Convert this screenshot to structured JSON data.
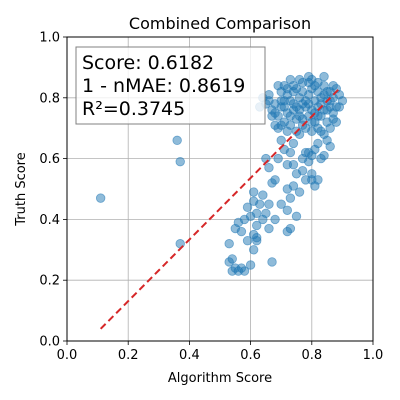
{
  "chart_data": {
    "type": "scatter",
    "title": "Combined Comparison",
    "xlabel": "Algorithm Score",
    "ylabel": "Truth Score",
    "xlim": [
      0.0,
      1.0
    ],
    "ylim": [
      0.0,
      1.0
    ],
    "xticks": [
      "0.0",
      "0.2",
      "0.4",
      "0.6",
      "0.8",
      "1.0"
    ],
    "yticks": [
      "0.0",
      "0.2",
      "0.4",
      "0.6",
      "0.8",
      "1.0"
    ],
    "grid": true,
    "stats_box": {
      "position": "top-left",
      "lines": [
        "Score: 0.6182",
        "1 - nMAE: 0.8619",
        "R²=0.3745"
      ]
    },
    "fit_line": {
      "x": [
        0.11,
        0.89
      ],
      "y": [
        0.04,
        0.83
      ],
      "color": "#d62728",
      "style": "dashed"
    },
    "point_color": "#1f77b4",
    "points": [
      [
        0.11,
        0.47
      ],
      [
        0.36,
        0.66
      ],
      [
        0.37,
        0.59
      ],
      [
        0.37,
        0.32
      ],
      [
        0.54,
        0.23
      ],
      [
        0.55,
        0.24
      ],
      [
        0.56,
        0.23
      ],
      [
        0.57,
        0.24
      ],
      [
        0.58,
        0.23
      ],
      [
        0.53,
        0.26
      ],
      [
        0.54,
        0.27
      ],
      [
        0.53,
        0.32
      ],
      [
        0.55,
        0.37
      ],
      [
        0.57,
        0.36
      ],
      [
        0.59,
        0.33
      ],
      [
        0.6,
        0.25
      ],
      [
        0.61,
        0.3
      ],
      [
        0.62,
        0.33
      ],
      [
        0.62,
        0.34
      ],
      [
        0.61,
        0.35
      ],
      [
        0.56,
        0.39
      ],
      [
        0.58,
        0.4
      ],
      [
        0.6,
        0.41
      ],
      [
        0.62,
        0.42
      ],
      [
        0.63,
        0.45
      ],
      [
        0.62,
        0.38
      ],
      [
        0.65,
        0.42
      ],
      [
        0.66,
        0.45
      ],
      [
        0.64,
        0.4
      ],
      [
        0.66,
        0.37
      ],
      [
        0.67,
        0.26
      ],
      [
        0.59,
        0.44
      ],
      [
        0.61,
        0.46
      ],
      [
        0.64,
        0.48
      ],
      [
        0.61,
        0.49
      ],
      [
        0.68,
        0.4
      ],
      [
        0.72,
        0.36
      ],
      [
        0.73,
        0.37
      ],
      [
        0.72,
        0.43
      ],
      [
        0.7,
        0.45
      ],
      [
        0.73,
        0.47
      ],
      [
        0.72,
        0.5
      ],
      [
        0.74,
        0.51
      ],
      [
        0.76,
        0.49
      ],
      [
        0.75,
        0.55
      ],
      [
        0.75,
        0.41
      ],
      [
        0.67,
        0.52
      ],
      [
        0.68,
        0.53
      ],
      [
        0.69,
        0.6
      ],
      [
        0.65,
        0.6
      ],
      [
        0.66,
        0.57
      ],
      [
        0.7,
        0.66
      ],
      [
        0.69,
        0.7
      ],
      [
        0.72,
        0.58
      ],
      [
        0.74,
        0.58
      ],
      [
        0.71,
        0.63
      ],
      [
        0.73,
        0.62
      ],
      [
        0.74,
        0.65
      ],
      [
        0.76,
        0.68
      ],
      [
        0.77,
        0.6
      ],
      [
        0.77,
        0.56
      ],
      [
        0.78,
        0.62
      ],
      [
        0.79,
        0.59
      ],
      [
        0.8,
        0.55
      ],
      [
        0.8,
        0.53
      ],
      [
        0.82,
        0.53
      ],
      [
        0.81,
        0.51
      ],
      [
        0.78,
        0.53
      ],
      [
        0.79,
        0.62
      ],
      [
        0.8,
        0.61
      ],
      [
        0.81,
        0.63
      ],
      [
        0.82,
        0.65
      ],
      [
        0.83,
        0.6
      ],
      [
        0.84,
        0.61
      ],
      [
        0.82,
        0.7
      ],
      [
        0.84,
        0.68
      ],
      [
        0.85,
        0.66
      ],
      [
        0.86,
        0.64
      ],
      [
        0.63,
        0.77
      ],
      [
        0.65,
        0.78
      ],
      [
        0.66,
        0.79
      ],
      [
        0.67,
        0.76
      ],
      [
        0.68,
        0.75
      ],
      [
        0.69,
        0.74
      ],
      [
        0.7,
        0.77
      ],
      [
        0.71,
        0.79
      ],
      [
        0.72,
        0.81
      ],
      [
        0.73,
        0.79
      ],
      [
        0.74,
        0.82
      ],
      [
        0.75,
        0.83
      ],
      [
        0.76,
        0.8
      ],
      [
        0.77,
        0.78
      ],
      [
        0.78,
        0.79
      ],
      [
        0.79,
        0.81
      ],
      [
        0.8,
        0.83
      ],
      [
        0.81,
        0.84
      ],
      [
        0.82,
        0.82
      ],
      [
        0.83,
        0.8
      ],
      [
        0.84,
        0.81
      ],
      [
        0.85,
        0.79
      ],
      [
        0.86,
        0.82
      ],
      [
        0.87,
        0.8
      ],
      [
        0.88,
        0.83
      ],
      [
        0.89,
        0.81
      ],
      [
        0.71,
        0.72
      ],
      [
        0.73,
        0.71
      ],
      [
        0.75,
        0.73
      ],
      [
        0.77,
        0.71
      ],
      [
        0.79,
        0.74
      ],
      [
        0.81,
        0.72
      ],
      [
        0.83,
        0.74
      ],
      [
        0.85,
        0.72
      ],
      [
        0.87,
        0.75
      ],
      [
        0.76,
        0.76
      ],
      [
        0.78,
        0.77
      ],
      [
        0.8,
        0.76
      ],
      [
        0.82,
        0.77
      ],
      [
        0.84,
        0.76
      ],
      [
        0.86,
        0.77
      ],
      [
        0.88,
        0.77
      ],
      [
        0.72,
        0.75
      ],
      [
        0.74,
        0.76
      ],
      [
        0.7,
        0.71
      ],
      [
        0.68,
        0.71
      ],
      [
        0.72,
        0.69
      ],
      [
        0.75,
        0.69
      ],
      [
        0.78,
        0.7
      ],
      [
        0.8,
        0.69
      ],
      [
        0.83,
        0.69
      ],
      [
        0.86,
        0.7
      ],
      [
        0.87,
        0.73
      ],
      [
        0.88,
        0.72
      ],
      [
        0.86,
        0.79
      ],
      [
        0.84,
        0.84
      ],
      [
        0.79,
        0.85
      ],
      [
        0.77,
        0.85
      ],
      [
        0.74,
        0.84
      ],
      [
        0.71,
        0.84
      ],
      [
        0.69,
        0.84
      ],
      [
        0.66,
        0.81
      ],
      [
        0.64,
        0.8
      ],
      [
        0.89,
        0.77
      ],
      [
        0.9,
        0.79
      ],
      [
        0.81,
        0.79
      ],
      [
        0.79,
        0.78
      ],
      [
        0.77,
        0.82
      ],
      [
        0.75,
        0.77
      ],
      [
        0.73,
        0.74
      ],
      [
        0.76,
        0.74
      ],
      [
        0.81,
        0.75
      ],
      [
        0.83,
        0.78
      ],
      [
        0.85,
        0.76
      ],
      [
        0.82,
        0.74
      ],
      [
        0.8,
        0.72
      ],
      [
        0.77,
        0.73
      ],
      [
        0.74,
        0.78
      ],
      [
        0.71,
        0.77
      ],
      [
        0.68,
        0.78
      ],
      [
        0.7,
        0.82
      ],
      [
        0.72,
        0.83
      ],
      [
        0.76,
        0.86
      ],
      [
        0.8,
        0.86
      ],
      [
        0.82,
        0.85
      ],
      [
        0.85,
        0.82
      ],
      [
        0.87,
        0.84
      ],
      [
        0.84,
        0.87
      ],
      [
        0.79,
        0.87
      ],
      [
        0.73,
        0.86
      ],
      [
        0.7,
        0.79
      ],
      [
        0.67,
        0.74
      ]
    ]
  }
}
